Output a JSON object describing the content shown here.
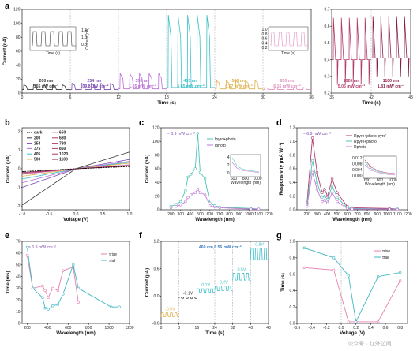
{
  "panel_labels": {
    "a": "a",
    "b": "b",
    "c": "c",
    "d": "d",
    "e": "e",
    "f": "f",
    "g": "g"
  },
  "watermark": "公众号 · 红外芯闻",
  "colors": {
    "dark": "#000000",
    "p200": "#3a3a3a",
    "p254": "#7a4bb0",
    "p350": "#b86fd6",
    "p405": "#3cc0c8",
    "p500": "#e0b04a",
    "p650": "#e08fc0",
    "p1020": "#b03a6a",
    "p1100": "#8a1e4a",
    "c_pyro": "#4fc3b5",
    "c_photo": "#c27ad8",
    "r1": "#b03a6a",
    "r2": "#4fc3b5",
    "r3": "#c27ad8",
    "e_rise": "#e67fb0",
    "e_fall": "#3fb7c2"
  },
  "chart_data": [
    {
      "id": "a",
      "type": "line",
      "xlabel": "Time (s)",
      "ylabel": "Current (nA)",
      "xlim": [
        0,
        36
      ],
      "ylim": [
        0,
        120
      ],
      "xticks": [
        "0",
        "6",
        "12",
        "18",
        "24",
        "30",
        "36"
      ],
      "yticks": [
        "0",
        "20",
        "40",
        "60",
        "80",
        "100",
        "120"
      ],
      "segments": [
        {
          "wavelength": "200 nm",
          "power": "165 μW cm⁻²",
          "x": [
            0,
            6
          ],
          "peak": 12,
          "base": 5,
          "color_key": "p200"
        },
        {
          "wavelength": "254 nm",
          "power": "109.8 μW cm⁻²",
          "x": [
            6,
            12
          ],
          "peak": 14,
          "base": 5,
          "color_key": "p254"
        },
        {
          "wavelength": "350 nm",
          "power": "1.65 mW cm⁻²",
          "x": [
            12,
            18
          ],
          "peak": 28,
          "base": 6,
          "color_key": "p350"
        },
        {
          "wavelength": "405 nm",
          "power": "6.85 mW cm⁻²",
          "x": [
            18,
            24
          ],
          "peak": 112,
          "base": 8,
          "color_key": "p405"
        },
        {
          "wavelength": "500 nm",
          "power": "6.97 mW cm⁻²",
          "x": [
            24,
            30
          ],
          "peak": 18,
          "base": 6,
          "color_key": "p500"
        },
        {
          "wavelength": "650 nm",
          "power": "6.16 mW cm⁻²",
          "x": [
            30,
            36
          ],
          "peak": 8,
          "base": 5,
          "color_key": "p650"
        }
      ],
      "inset_left": {
        "xlabel": "Time (s)",
        "ylabel": "Current (nA)",
        "yticks": [
          "1.5",
          "1.0",
          "0.5"
        ]
      },
      "inset_right": {
        "xlabel": "Time (s)",
        "ylabel": "Current (nA)",
        "yticks": [
          "1.0",
          "0.8",
          "0.6",
          "0.4",
          "0.2"
        ]
      }
    },
    {
      "id": "a2",
      "type": "line",
      "xlim": [
        36,
        48
      ],
      "ylim": [
        0.2,
        0.7
      ],
      "xticks": [
        "36",
        "42",
        "48"
      ],
      "yticks": [
        "0.2",
        "0.3",
        "0.4",
        "0.5",
        "0.6",
        "0.7"
      ],
      "segments": [
        {
          "wavelength": "1020 nm",
          "power": "5.06 mW cm⁻²",
          "x": [
            36,
            42
          ],
          "peak": 0.65,
          "base": 0.4,
          "dip": 0.25,
          "color_key": "p1020"
        },
        {
          "wavelength": "1100 nm",
          "power": "1.81 mW cm⁻²",
          "x": [
            42,
            48
          ],
          "peak": 0.66,
          "base": 0.41,
          "dip": 0.3,
          "color_key": "p1100"
        }
      ]
    },
    {
      "id": "b",
      "type": "line",
      "xlabel": "Voltage (V)",
      "ylabel": "Current (μA)",
      "xlim": [
        -1,
        1
      ],
      "ylim": [
        -2.2,
        2.2
      ],
      "xticks": [
        "-1.0",
        "-0.5",
        "0.0",
        "0.5",
        "1.0"
      ],
      "yticks": [
        "-2",
        "-1",
        "0",
        "1",
        "2"
      ],
      "legend": [
        {
          "name": "dark",
          "color_key": "dark",
          "dashed": true
        },
        {
          "name": "650",
          "color_key": "p650"
        },
        {
          "name": "200",
          "color_key": "p200"
        },
        {
          "name": "680",
          "color_key": "p1020"
        },
        {
          "name": "254",
          "color_key": "p254"
        },
        {
          "name": "780",
          "color_key": "p1020"
        },
        {
          "name": "375",
          "color_key": "p350"
        },
        {
          "name": "850",
          "color_key": "p1020"
        },
        {
          "name": "405",
          "color_key": "p405"
        },
        {
          "name": "1020",
          "color_key": "p1020"
        },
        {
          "name": "500",
          "color_key": "p500"
        },
        {
          "name": "1100",
          "color_key": "p1100"
        }
      ],
      "curves": [
        {
          "color_key": "p200",
          "slope_neg": 1.95,
          "slope_pos": 0.9
        },
        {
          "color_key": "p254",
          "slope_neg": 1.0,
          "slope_pos": 0.5
        },
        {
          "color_key": "p350",
          "slope_neg": 0.75,
          "slope_pos": 0.4
        },
        {
          "color_key": "p405",
          "slope_neg": 0.55,
          "slope_pos": 0.35
        },
        {
          "color_key": "p500",
          "slope_neg": 0.4,
          "slope_pos": 0.3
        },
        {
          "color_key": "p650",
          "slope_neg": 0.3,
          "slope_pos": 0.22
        },
        {
          "color_key": "p1020",
          "slope_neg": 0.25,
          "slope_pos": 0.18
        },
        {
          "color_key": "p1100",
          "slope_neg": 0.2,
          "slope_pos": 0.15
        },
        {
          "color_key": "dark",
          "slope_neg": 0.15,
          "slope_pos": 0.12,
          "dashed": true
        }
      ]
    },
    {
      "id": "c",
      "type": "line",
      "xlabel": "Wavelength (nm)",
      "ylabel": "Current (nA)",
      "annotation": "≈ 6.9 mW cm⁻²",
      "xlim": [
        100,
        1200
      ],
      "ylim": [
        0,
        120
      ],
      "xticks": [
        "200",
        "300",
        "400",
        "500",
        "600",
        "700",
        "800",
        "900",
        "1000",
        "1100",
        "1200"
      ],
      "yticks": [
        "0",
        "20",
        "40",
        "60",
        "80",
        "100",
        "120"
      ],
      "series": [
        {
          "name": "Ipyro+photo",
          "color_key": "c_pyro",
          "x": [
            200,
            254,
            300,
            350,
            375,
            405,
            450,
            475,
            500,
            550,
            600,
            650,
            700,
            1020,
            1100
          ],
          "y": [
            5,
            8,
            12,
            28,
            48,
            52,
            60,
            112,
            55,
            45,
            10,
            6,
            4,
            2,
            1
          ]
        },
        {
          "name": "Iphoto",
          "color_key": "c_photo",
          "x": [
            200,
            254,
            300,
            350,
            375,
            405,
            450,
            475,
            500,
            550,
            600,
            650,
            700,
            1020,
            1100
          ],
          "y": [
            3,
            5,
            7,
            12,
            18,
            22,
            25,
            30,
            25,
            22,
            6,
            4,
            3,
            1,
            1
          ]
        }
      ],
      "inset": {
        "xlabel": "Wavelength (nm)",
        "ylabel": "Current (nA)",
        "xticks": [
          "600",
          "800",
          "1000"
        ],
        "yticks": [
          "4",
          "2",
          "0"
        ]
      }
    },
    {
      "id": "d",
      "type": "line",
      "xlabel": "Wavelength (nm)",
      "ylabel": "Responsivity (mA W⁻¹)",
      "annotation": "≈ 6.9 mW cm⁻²",
      "xlim": [
        100,
        1200
      ],
      "ylim": [
        0,
        1.2
      ],
      "xticks": [
        "200",
        "300",
        "400",
        "500",
        "600",
        "700",
        "800",
        "900",
        "1000",
        "1100",
        "1200"
      ],
      "yticks": [
        "0.0",
        "0.2",
        "0.4",
        "0.6",
        "0.8",
        "1.0",
        "1.2"
      ],
      "series": [
        {
          "name": "Rpyro+photo-pyro'",
          "color_key": "r1",
          "x": [
            200,
            254,
            300,
            350,
            375,
            405,
            450,
            500,
            600,
            650,
            1020,
            1100
          ],
          "y": [
            0.1,
            1.05,
            0.55,
            0.25,
            0.3,
            0.2,
            0.45,
            0.25,
            0.05,
            0.03,
            0.02,
            0.01
          ]
        },
        {
          "name": "Rpyro+photo",
          "color_key": "r2",
          "x": [
            200,
            254,
            300,
            350,
            375,
            405,
            450,
            500,
            600,
            650,
            1020,
            1100
          ],
          "y": [
            0.08,
            0.72,
            0.4,
            0.18,
            0.2,
            0.15,
            0.35,
            0.18,
            0.03,
            0.02,
            0.01,
            0.01
          ]
        },
        {
          "name": "Rphoto",
          "color_key": "r3",
          "x": [
            200,
            254,
            300,
            350,
            375,
            405,
            450,
            500,
            600,
            650,
            1020,
            1100
          ],
          "y": [
            0.05,
            0.55,
            0.3,
            0.12,
            0.14,
            0.1,
            0.25,
            0.12,
            0.02,
            0.01,
            0.01,
            0.005
          ]
        }
      ],
      "inset": {
        "xlabel": "Wavelength (nm)",
        "ylabel": "Responsivity (A W⁻¹)",
        "xticks": [
          "600",
          "800",
          "1000"
        ],
        "yticks": [
          "0.012",
          "0.008",
          "0.004",
          "0.000"
        ]
      }
    },
    {
      "id": "e",
      "type": "line",
      "xlabel": "Wavelength (nm)",
      "ylabel": "Time (ms)",
      "annotation": "≈ 6.9 mW cm⁻²",
      "xlim": [
        150,
        1200
      ],
      "ylim": [
        0,
        70
      ],
      "xticks": [
        "200",
        "400",
        "600",
        "800",
        "1000",
        "1200"
      ],
      "yticks": [
        "0",
        "10",
        "20",
        "30",
        "40",
        "50",
        "60",
        "70"
      ],
      "series": [
        {
          "name": "τrise",
          "color_key": "e_rise",
          "x": [
            200,
            254,
            350,
            375,
            405,
            450,
            500,
            550,
            650,
            700
          ],
          "y": [
            58,
            30,
            32,
            28,
            22,
            30,
            28,
            45,
            48,
            18
          ]
        },
        {
          "name": "τfall",
          "color_key": "e_fall",
          "x": [
            200,
            254,
            350,
            375,
            405,
            450,
            500,
            550,
            650,
            700,
            1020,
            1100
          ],
          "y": [
            65,
            30,
            22,
            13,
            12,
            15,
            16,
            25,
            50,
            30,
            14,
            14
          ]
        }
      ]
    },
    {
      "id": "f",
      "type": "line",
      "xlabel": "Time (s)",
      "ylabel": "Current (μA)",
      "annotation": "460 nm,6.56 mW cm⁻²",
      "xlim": [
        0,
        48
      ],
      "ylim": [
        -0.6,
        1.2
      ],
      "xticks": [
        "0",
        "8",
        "16",
        "24",
        "32",
        "40",
        "48"
      ],
      "yticks": [
        "1.2",
        "0.6",
        "0.0",
        "-0.6"
      ],
      "segments": [
        {
          "label": "-0.5V",
          "x": [
            0,
            8
          ],
          "level": -0.45,
          "amp": 0.08
        },
        {
          "label": "-0.1V",
          "x": [
            8,
            16
          ],
          "level": -0.05,
          "amp": 0.03
        },
        {
          "label": "0.1V",
          "x": [
            16,
            24
          ],
          "level": 0.08,
          "amp": 0.08
        },
        {
          "label": "0.2V",
          "x": [
            24,
            32
          ],
          "level": 0.12,
          "amp": 0.1
        },
        {
          "label": "0.5V",
          "x": [
            32,
            40
          ],
          "level": 0.35,
          "amp": 0.15
        },
        {
          "label": "0.8V",
          "x": [
            40,
            48
          ],
          "level": 0.8,
          "amp": 0.25
        }
      ]
    },
    {
      "id": "g",
      "type": "line",
      "xlabel": "Voltage (V)",
      "ylabel": "Time (s)",
      "xlim": [
        -0.6,
        0.9
      ],
      "ylim": [
        0,
        1
      ],
      "xticks": [
        "-0.6",
        "-0.4",
        "-0.2",
        "0.0",
        "0.2",
        "0.4",
        "0.6",
        "0.8"
      ],
      "yticks": [
        "0.0",
        "0.2",
        "0.4",
        "0.6",
        "0.8",
        "1.0"
      ],
      "series": [
        {
          "name": "τrise",
          "color_key": "e_rise",
          "x": [
            -0.5,
            -0.1,
            0.1,
            0.2,
            0.5,
            0.8
          ],
          "y": [
            0.68,
            0.65,
            0.02,
            0.02,
            0.02,
            0.52
          ]
        },
        {
          "name": "τfall",
          "color_key": "e_fall",
          "x": [
            -0.5,
            -0.1,
            0.1,
            0.2,
            0.5,
            0.8
          ],
          "y": [
            0.92,
            0.8,
            0.58,
            0.02,
            0.57,
            0.62
          ]
        }
      ]
    }
  ]
}
